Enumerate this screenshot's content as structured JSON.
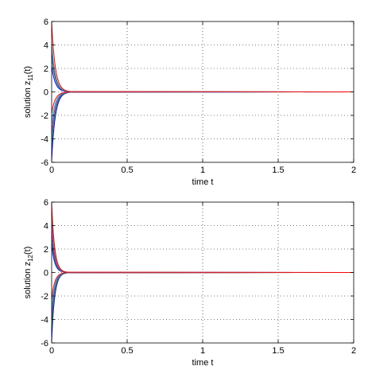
{
  "chart_data": [
    {
      "type": "line",
      "xlabel": "time t",
      "ylabel": {
        "base": "solution z",
        "sub": "11",
        "suffix": "(t)"
      },
      "xlim": [
        0,
        2
      ],
      "ylim": [
        -6,
        6
      ],
      "xticks": [
        "0",
        "0.5",
        "1",
        "1.5",
        "2"
      ],
      "yticks": [
        "-6",
        "-4",
        "-2",
        "0",
        "2",
        "4",
        "6"
      ],
      "grid": true,
      "decay_time": 0.12,
      "series": [
        {
          "color": "#0000ff",
          "y0": -5.8
        },
        {
          "color": "#00a000",
          "y0": -4.6
        },
        {
          "color": "#cc00cc",
          "y0": -3.6
        },
        {
          "color": "#00bfbf",
          "y0": -2.7
        },
        {
          "color": "#ff0000",
          "y0": -1.8
        },
        {
          "color": "#0000ff",
          "y0": 2.2
        },
        {
          "color": "#00a000",
          "y0": 3.1
        },
        {
          "color": "#cc00cc",
          "y0": 3.6
        },
        {
          "color": "#00bfbf",
          "y0": 4.2
        },
        {
          "color": "#ff0000",
          "y0": 5.9
        }
      ]
    },
    {
      "type": "line",
      "xlabel": "time t",
      "ylabel": {
        "base": "solution z",
        "sub": "12",
        "suffix": "(t)"
      },
      "xlim": [
        0,
        2
      ],
      "ylim": [
        -6,
        6
      ],
      "xticks": [
        "0",
        "0.5",
        "1",
        "1.5",
        "2"
      ],
      "yticks": [
        "-6",
        "-4",
        "-2",
        "0",
        "2",
        "4",
        "6"
      ],
      "grid": true,
      "decay_time": 0.1,
      "series": [
        {
          "color": "#0000ff",
          "y0": -5.8
        },
        {
          "color": "#00a000",
          "y0": -4.9
        },
        {
          "color": "#cc00cc",
          "y0": -3.9
        },
        {
          "color": "#00bfbf",
          "y0": -3.2
        },
        {
          "color": "#ff0000",
          "y0": -2.3
        },
        {
          "color": "#0000ff",
          "y0": 2.4
        },
        {
          "color": "#00a000",
          "y0": 3.1
        },
        {
          "color": "#cc00cc",
          "y0": 4.0
        },
        {
          "color": "#00bfbf",
          "y0": 5.2
        },
        {
          "color": "#ff0000",
          "y0": 5.9
        }
      ]
    }
  ]
}
